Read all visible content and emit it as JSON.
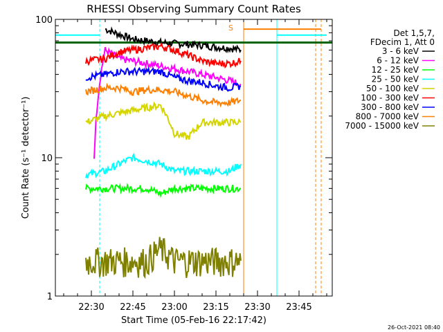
{
  "chart_data": {
    "type": "line",
    "title": "RHESSI Observing Summary Count Rates",
    "xlabel": "Start Time (05-Feb-16 22:17:42)",
    "ylabel": "Count Rate (s⁻¹ detector⁻¹)",
    "xlim": [
      "22:17",
      "23:57"
    ],
    "ylim": [
      1,
      100
    ],
    "yscale": "log",
    "x_ticks": [
      "22:30",
      "22:45",
      "23:00",
      "23:15",
      "23:30",
      "23:45"
    ],
    "y_ticks": [
      "1",
      "10",
      "100"
    ],
    "legend_position": "right",
    "legend_header": [
      "Det 1,5,7,",
      "FDecim 1, Att 0"
    ],
    "annotation": "S",
    "timestamp": "26-Oct-2021 08:40",
    "series": [
      {
        "name": "3 - 6 keV",
        "color": "#000000",
        "x": [
          "22:35",
          "22:40",
          "22:45",
          "22:50",
          "22:55",
          "23:00",
          "23:05",
          "23:10",
          "23:15",
          "23:20",
          "23:24"
        ],
        "values": [
          85,
          78,
          72,
          70,
          68,
          67,
          66,
          65,
          63,
          62,
          60
        ]
      },
      {
        "name": "6 - 12 keV",
        "color": "#ff00ff",
        "x": [
          "22:31",
          "22:35",
          "22:40",
          "22:45",
          "22:50",
          "22:55",
          "23:00",
          "23:05",
          "23:10",
          "23:15",
          "23:20",
          "23:24"
        ],
        "values": [
          10,
          60,
          52,
          50,
          48,
          46,
          44,
          42,
          40,
          38,
          36,
          34
        ]
      },
      {
        "name": "12 - 25 keV",
        "color": "#00ff00",
        "x": [
          "22:28",
          "22:35",
          "22:40",
          "22:45",
          "22:50",
          "22:55",
          "23:00",
          "23:05",
          "23:10",
          "23:15",
          "23:20",
          "23:24"
        ],
        "values": [
          6,
          6,
          6,
          6,
          6,
          5.5,
          6,
          6,
          6,
          6,
          6,
          6
        ]
      },
      {
        "name": "25 - 50 keV",
        "color": "#00ffff",
        "x": [
          "22:28",
          "22:35",
          "22:40",
          "22:45",
          "22:50",
          "22:55",
          "23:00",
          "23:05",
          "23:10",
          "23:15",
          "23:20",
          "23:24"
        ],
        "values": [
          7.5,
          8,
          9,
          10,
          9.5,
          9,
          8,
          8,
          8,
          8,
          8,
          9
        ]
      },
      {
        "name": "50 - 100 keV",
        "color": "#d4d400",
        "x": [
          "22:28",
          "22:35",
          "22:40",
          "22:45",
          "22:50",
          "22:55",
          "23:00",
          "23:05",
          "23:10",
          "23:15",
          "23:20",
          "23:24"
        ],
        "values": [
          18,
          20,
          21,
          22,
          23,
          24,
          15,
          14,
          18,
          18,
          18,
          18
        ]
      },
      {
        "name": "100 - 300 keV",
        "color": "#ff0000",
        "x": [
          "22:28",
          "22:35",
          "22:40",
          "22:45",
          "22:50",
          "22:55",
          "23:00",
          "23:05",
          "23:10",
          "23:15",
          "23:20",
          "23:24"
        ],
        "values": [
          50,
          52,
          58,
          60,
          62,
          64,
          60,
          55,
          50,
          48,
          48,
          50
        ]
      },
      {
        "name": "300 - 800 keV",
        "color": "#0000ff",
        "x": [
          "22:28",
          "22:35",
          "22:40",
          "22:45",
          "22:50",
          "22:55",
          "23:00",
          "23:05",
          "23:10",
          "23:15",
          "23:20",
          "23:24"
        ],
        "values": [
          38,
          40,
          42,
          42,
          42,
          42,
          38,
          36,
          35,
          33,
          32,
          33
        ]
      },
      {
        "name": "800 - 7000 keV",
        "color": "#ff8000",
        "x": [
          "22:28",
          "22:35",
          "22:40",
          "22:45",
          "22:50",
          "22:55",
          "23:00",
          "23:05",
          "23:10",
          "23:15",
          "23:20",
          "23:24"
        ],
        "values": [
          30,
          32,
          32,
          30,
          31,
          31,
          30,
          28,
          26,
          25,
          25,
          26
        ]
      },
      {
        "name": "7000 - 15000 keV",
        "color": "#808000",
        "x": [
          "22:28",
          "22:35",
          "22:40",
          "22:45",
          "22:50",
          "22:55",
          "23:00",
          "23:05",
          "23:10",
          "23:15",
          "23:20",
          "23:24"
        ],
        "values": [
          1.8,
          1.8,
          1.8,
          1.8,
          1.8,
          2.2,
          1.8,
          1.8,
          1.8,
          1.8,
          1.8,
          1.8
        ]
      }
    ],
    "reference_lines": [
      {
        "color": "#006400",
        "value": 68
      },
      {
        "color": "#00ffff",
        "x_range": [
          "22:17",
          "22:33"
        ],
        "value": 77
      },
      {
        "color": "#00ffff",
        "x_range": [
          "23:37",
          "23:55"
        ],
        "value": 77
      },
      {
        "color": "#ff8000",
        "x_range": [
          "23:25",
          "23:53"
        ],
        "value": 85
      }
    ],
    "vertical_markers": [
      {
        "color": "#00ffff",
        "x": "22:17",
        "style": "solid"
      },
      {
        "color": "#00ffff",
        "x": "22:33",
        "style": "dashed"
      },
      {
        "color": "#00ffff",
        "x": "23:37",
        "style": "solid"
      },
      {
        "color": "#ff8000",
        "x": "23:25",
        "style": "solid"
      },
      {
        "color": "#ff8000",
        "x": "23:51",
        "style": "dashed"
      },
      {
        "color": "#ff8000",
        "x": "23:53",
        "style": "dashed"
      }
    ]
  }
}
